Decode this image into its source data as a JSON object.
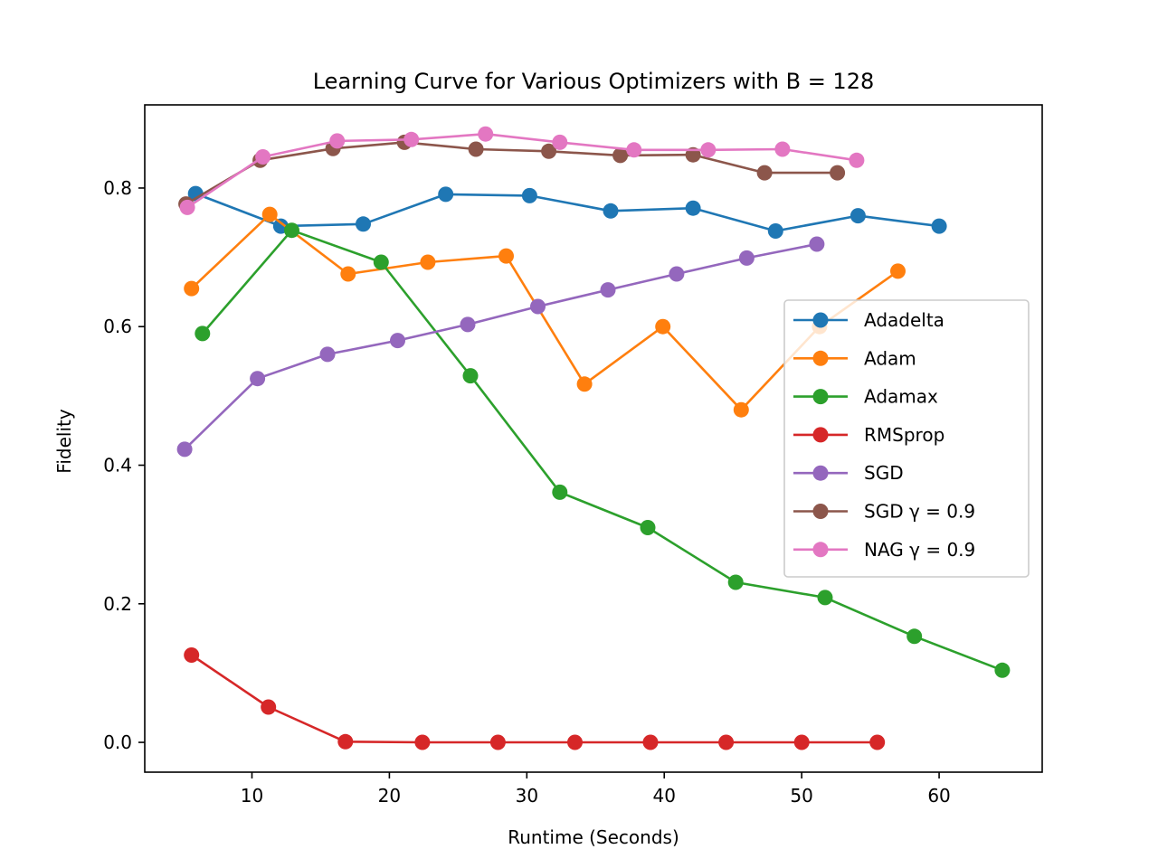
{
  "chart_data": {
    "type": "line",
    "title": "Learning Curve for Various Optimizers with B = 128",
    "xlabel": "Runtime (Seconds)",
    "ylabel": "Fidelity",
    "xlim": [
      2.2,
      67.5
    ],
    "ylim": [
      -0.043,
      0.92
    ],
    "xticks": [
      10,
      20,
      30,
      40,
      50,
      60
    ],
    "yticks": [
      0.0,
      0.2,
      0.4,
      0.6,
      0.8
    ],
    "xtick_labels": [
      "10",
      "20",
      "30",
      "40",
      "50",
      "60"
    ],
    "ytick_labels": [
      "0.0",
      "0.2",
      "0.4",
      "0.6",
      "0.8"
    ],
    "grid": false,
    "legend_position": "center-right",
    "series": [
      {
        "name": "Adadelta",
        "color": "#1f77b4",
        "x": [
          5.9,
          12.1,
          18.1,
          24.1,
          30.2,
          36.1,
          42.1,
          48.1,
          54.1,
          60.0
        ],
        "y": [
          0.792,
          0.745,
          0.748,
          0.791,
          0.789,
          0.767,
          0.771,
          0.738,
          0.76,
          0.745
        ]
      },
      {
        "name": "Adam",
        "color": "#ff7f0e",
        "x": [
          5.6,
          11.3,
          17.0,
          22.8,
          28.5,
          34.2,
          39.9,
          45.6,
          51.3,
          57.0
        ],
        "y": [
          0.655,
          0.762,
          0.676,
          0.693,
          0.702,
          0.517,
          0.6,
          0.48,
          0.6,
          0.68
        ]
      },
      {
        "name": "Adamax",
        "color": "#2ca02c",
        "x": [
          6.4,
          12.9,
          19.4,
          25.9,
          32.4,
          38.8,
          45.2,
          51.7,
          58.2,
          64.6
        ],
        "y": [
          0.59,
          0.739,
          0.693,
          0.529,
          0.361,
          0.31,
          0.231,
          0.209,
          0.153,
          0.104
        ]
      },
      {
        "name": "RMSprop",
        "color": "#d62728",
        "x": [
          5.6,
          11.2,
          16.8,
          22.4,
          27.9,
          33.5,
          39.0,
          44.5,
          50.0,
          55.5
        ],
        "y": [
          0.126,
          0.051,
          0.001,
          0.0,
          0.0,
          0.0,
          0.0,
          0.0,
          0.0,
          0.0
        ]
      },
      {
        "name": "SGD",
        "color": "#9467bd",
        "x": [
          5.1,
          10.4,
          15.5,
          20.6,
          25.7,
          30.8,
          35.9,
          40.9,
          46.0,
          51.1
        ],
        "y": [
          0.423,
          0.525,
          0.56,
          0.58,
          0.603,
          0.629,
          0.653,
          0.676,
          0.699,
          0.719
        ]
      },
      {
        "name": "SGD γ = 0.9",
        "color": "#8c564b",
        "x": [
          5.2,
          10.6,
          15.9,
          21.1,
          26.3,
          31.6,
          36.8,
          42.1,
          47.3,
          52.6
        ],
        "y": [
          0.777,
          0.84,
          0.857,
          0.866,
          0.856,
          0.853,
          0.847,
          0.848,
          0.822,
          0.822
        ]
      },
      {
        "name": "NAG γ = 0.9",
        "color": "#e377c2",
        "x": [
          5.3,
          10.8,
          16.2,
          21.6,
          27.0,
          32.4,
          37.8,
          43.2,
          48.6,
          54.0
        ],
        "y": [
          0.772,
          0.845,
          0.868,
          0.87,
          0.878,
          0.866,
          0.855,
          0.855,
          0.856,
          0.84
        ]
      }
    ]
  }
}
